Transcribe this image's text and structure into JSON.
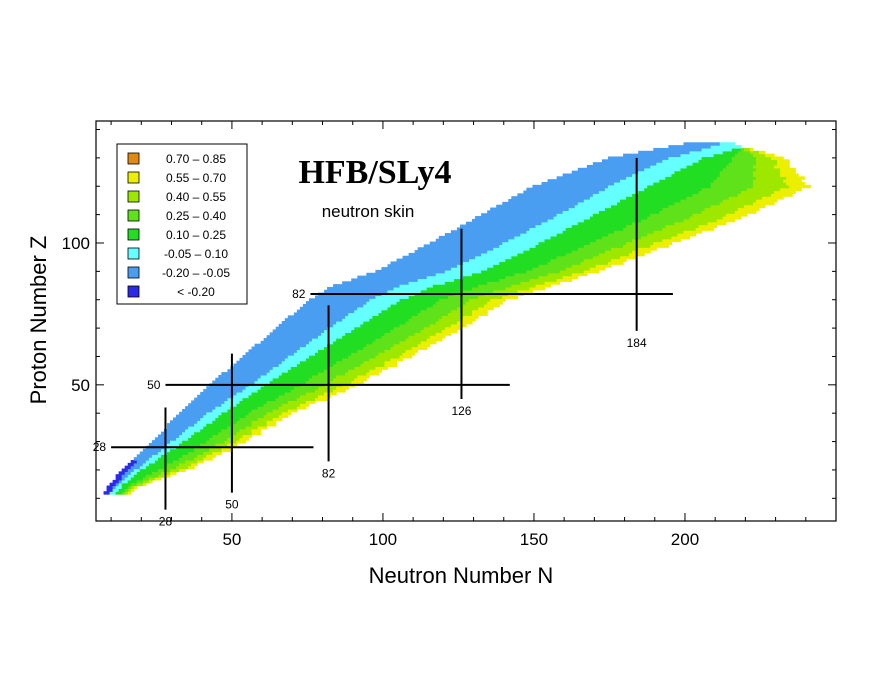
{
  "chart_data": {
    "type": "heatmap",
    "title": "HFB/SLy4",
    "subtitle": "neutron skin",
    "xlabel": "Neutron Number N",
    "ylabel": "Proton Number Z",
    "xlim": [
      5,
      250
    ],
    "ylim": [
      2,
      143
    ],
    "xticks": [
      50,
      100,
      150,
      200
    ],
    "yticks": [
      50,
      100
    ],
    "xtick_labels": [
      "50",
      "100",
      "150",
      "200"
    ],
    "ytick_labels": [
      "50",
      "100"
    ],
    "legend_position": "top-left",
    "legend": [
      {
        "label": "0.70 – 0.85",
        "color": "#e08a10"
      },
      {
        "label": "0.55 – 0.70",
        "color": "#ecf000"
      },
      {
        "label": "0.40 – 0.55",
        "color": "#9ee800"
      },
      {
        "label": "0.25 – 0.40",
        "color": "#5fe21a"
      },
      {
        "label": "0.10 – 0.25",
        "color": "#22de22"
      },
      {
        "label": "-0.05 – 0.10",
        "color": "#66ffff"
      },
      {
        "label": "-0.20 – -0.05",
        "color": "#4a9ef2"
      },
      {
        "label": "< -0.20",
        "color": "#2a2ae8"
      }
    ],
    "chart_boundary": {
      "z": [
        12,
        15,
        20,
        25,
        30,
        40,
        50,
        60,
        70,
        80,
        85,
        90,
        100,
        110,
        120,
        130,
        135
      ],
      "n_min": [
        8,
        10,
        14,
        19,
        24,
        33,
        43,
        54,
        65,
        76,
        84,
        98,
        116,
        133,
        150,
        175,
        200
      ],
      "n_max": [
        15,
        20,
        34,
        44,
        53,
        69,
        90,
        108,
        125,
        140,
        155,
        170,
        195,
        220,
        240,
        232,
        215
      ],
      "blue_boundary": [
        10,
        13,
        18,
        24,
        30,
        42,
        56,
        69,
        82,
        96,
        106,
        121,
        140,
        158,
        175,
        195,
        212
      ],
      "cyan_boundary": [
        12,
        14,
        20,
        27,
        34,
        47,
        61,
        76,
        91,
        106,
        117,
        133,
        152,
        170,
        188,
        206,
        222
      ]
    },
    "magic_lines": [
      {
        "orientation": "Z",
        "value": 28,
        "label": "28",
        "range": [
          10,
          77
        ]
      },
      {
        "orientation": "Z",
        "value": 50,
        "label": "50",
        "range": [
          28,
          142
        ]
      },
      {
        "orientation": "Z",
        "value": 82,
        "label": "82",
        "range": [
          76,
          196
        ]
      },
      {
        "orientation": "N",
        "value": 28,
        "label": "28",
        "range": [
          6,
          42
        ]
      },
      {
        "orientation": "N",
        "value": 50,
        "label": "50",
        "range": [
          12,
          61
        ]
      },
      {
        "orientation": "N",
        "value": 82,
        "label": "82",
        "range": [
          23,
          78
        ]
      },
      {
        "orientation": "N",
        "value": 126,
        "label": "126",
        "range": [
          45,
          105
        ]
      },
      {
        "orientation": "N",
        "value": 184,
        "label": "184",
        "range": [
          69,
          130
        ]
      }
    ]
  }
}
